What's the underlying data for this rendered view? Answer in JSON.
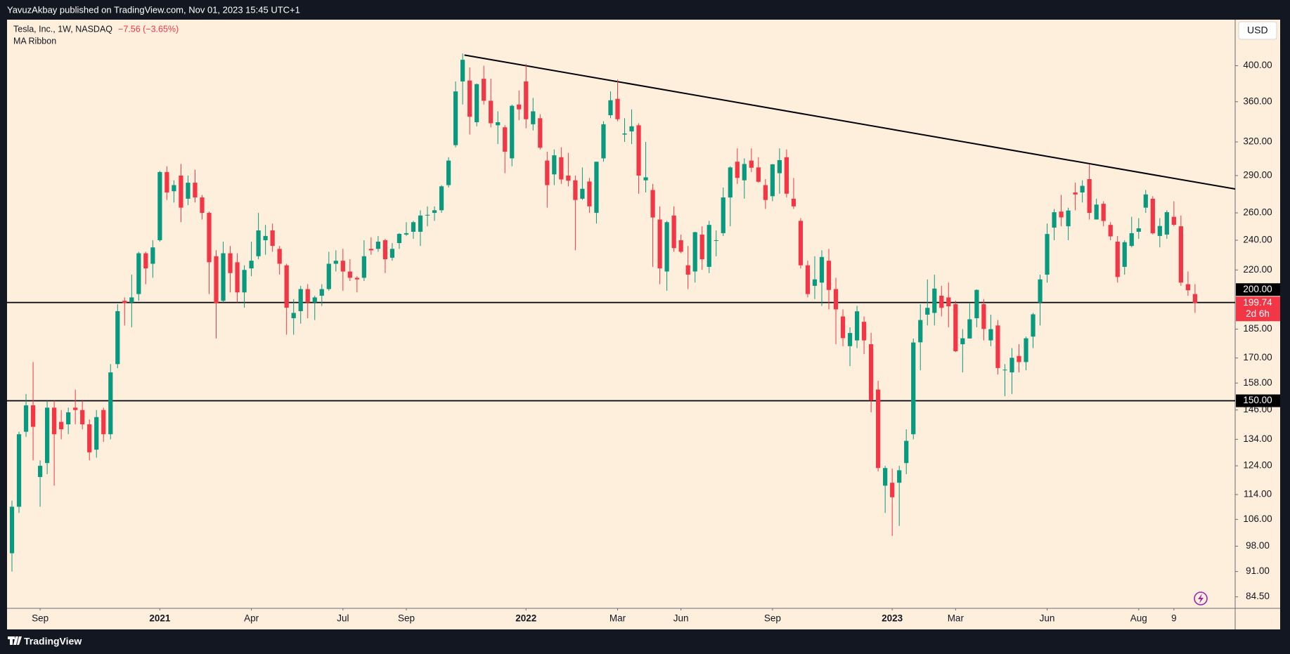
{
  "publisher": "YavuzAkbay published on TradingView.com, Nov 01, 2023 15:45 UTC+1",
  "footer": "TradingView",
  "currency": "USD",
  "chart_data": {
    "type": "candlestick",
    "title": "Tesla, Inc., 1W, NASDAQ",
    "change": {
      "value": -7.56,
      "percent": -3.65,
      "label": "−7.56 (−3.65%)"
    },
    "indicator": "MA Ribbon",
    "countdown": "2d 6h",
    "log_scale": true,
    "grid": false,
    "up_color": "#089981",
    "down_color": "#f23645",
    "ylim": [
      81.7,
      457.7
    ],
    "xlim": [
      -0.7,
      173.7
    ],
    "yticks": [
      {
        "value": 84.5,
        "label": "84.50"
      },
      {
        "value": 91,
        "label": "91.00"
      },
      {
        "value": 98,
        "label": "98.00"
      },
      {
        "value": 106,
        "label": "106.00"
      },
      {
        "value": 114,
        "label": "114.00"
      },
      {
        "value": 124,
        "label": "124.00"
      },
      {
        "value": 134,
        "label": "134.00"
      },
      {
        "value": 146,
        "label": "146.00"
      },
      {
        "value": 158,
        "label": "158.00"
      },
      {
        "value": 170,
        "label": "170.00"
      },
      {
        "value": 185,
        "label": "185.00"
      },
      {
        "value": 220,
        "label": "220.00"
      },
      {
        "value": 240,
        "label": "240.00"
      },
      {
        "value": 260,
        "label": "260.00"
      },
      {
        "value": 290,
        "label": "290.00"
      },
      {
        "value": 320,
        "label": "320.00"
      },
      {
        "value": 360,
        "label": "360.00"
      },
      {
        "value": 400,
        "label": "400.00"
      }
    ],
    "xticks": [
      {
        "value": 4,
        "label": "Sep"
      },
      {
        "value": 21,
        "label": "2021"
      },
      {
        "value": 34,
        "label": "Apr"
      },
      {
        "value": 47,
        "label": "Jul"
      },
      {
        "value": 56,
        "label": "Sep"
      },
      {
        "value": 73,
        "label": "2022"
      },
      {
        "value": 86,
        "label": "Mar"
      },
      {
        "value": 95,
        "label": "Jun"
      },
      {
        "value": 108,
        "label": "Sep"
      },
      {
        "value": 125,
        "label": "2023"
      },
      {
        "value": 134,
        "label": "Mar"
      },
      {
        "value": 147,
        "label": "Jun"
      },
      {
        "value": 160,
        "label": "Aug"
      },
      {
        "value": 165,
        "label": "9"
      }
    ],
    "hlines": [
      {
        "value": 200,
        "label": "200.00"
      },
      {
        "value": 150,
        "label": "150.00"
      }
    ],
    "trendline": {
      "x": [
        64.25,
        173.7
      ],
      "y": [
        412.7,
        278.8
      ]
    },
    "open": [
      96,
      110,
      137,
      148,
      120,
      125,
      147,
      141,
      140,
      147,
      146,
      140,
      130,
      146,
      136,
      167,
      201,
      200,
      205,
      231,
      224,
      240,
      293,
      277,
      290,
      271,
      284,
      272,
      260,
      229,
      201,
      231,
      225,
      206,
      221,
      229,
      240,
      247,
      234,
      223,
      191,
      195,
      208,
      200,
      204,
      208,
      224,
      226,
      219,
      215,
      215,
      234,
      234,
      240,
      228,
      238,
      244,
      246,
      246,
      258,
      260,
      262,
      282,
      317,
      382,
      383,
      339,
      385,
      361,
      336,
      334,
      305,
      357,
      382,
      337,
      343,
      303,
      291,
      306,
      290,
      286,
      271,
      285,
      260,
      305,
      346,
      363,
      327,
      330,
      336,
      286,
      278,
      255,
      219,
      258,
      240,
      223,
      219,
      244,
      222,
      240,
      245,
      272,
      302,
      286,
      303,
      297,
      282,
      273,
      292,
      306,
      271,
      254,
      223,
      210,
      212,
      226,
      208,
      192,
      176,
      179,
      189,
      177,
      155,
      117,
      118,
      118,
      125,
      136,
      178,
      193,
      194,
      204,
      203,
      199,
      177,
      180,
      191,
      199,
      179,
      187,
      164,
      163,
      171,
      168,
      181,
      200,
      217,
      249,
      261,
      250,
      276,
      276,
      287,
      255,
      267,
      251,
      239,
      222,
      236,
      246,
      264,
      271,
      243,
      244,
      257,
      250,
      211,
      205
    ],
    "high": [
      112,
      137,
      153,
      168,
      126,
      150,
      150,
      146,
      147,
      155,
      150,
      142,
      146,
      147,
      167,
      199,
      203,
      217,
      232,
      232,
      240,
      294,
      298,
      286,
      300,
      290,
      295,
      274,
      261,
      233,
      239,
      236,
      231,
      223,
      239,
      260,
      251,
      252,
      236,
      224,
      202,
      210,
      211,
      204,
      211,
      232,
      233,
      234,
      227,
      216,
      240,
      242,
      243,
      241,
      238,
      245,
      253,
      254,
      262,
      265,
      265,
      282,
      306,
      382,
      414.5,
      398,
      379.7,
      400,
      385,
      350,
      336,
      357,
      372,
      402,
      364,
      347,
      311,
      313,
      315,
      310,
      290,
      297,
      288,
      302,
      340,
      371,
      384,
      343,
      352,
      338,
      320,
      283,
      265,
      254,
      265,
      244,
      236,
      246,
      250,
      254,
      247,
      280,
      298,
      314,
      305,
      314,
      306,
      287,
      300,
      314,
      313,
      288,
      256,
      226,
      229,
      233,
      234,
      215,
      196,
      186,
      198,
      192,
      183,
      159,
      124,
      123,
      124,
      138,
      180,
      199,
      214,
      217,
      210,
      212,
      201,
      185,
      200,
      207.8,
      202,
      193,
      190,
      167,
      175,
      177,
      181,
      194,
      217,
      252,
      263,
      274,
      264,
      284,
      286,
      300,
      271,
      269,
      253,
      243,
      240,
      257,
      256,
      278,
      273,
      256,
      262,
      269,
      258,
      219,
      211
    ],
    "low": [
      91,
      108,
      135,
      126,
      110,
      121,
      117,
      134,
      136,
      140,
      138,
      126,
      127,
      133,
      134,
      165,
      187,
      186,
      201,
      211,
      215,
      239,
      270,
      268,
      253,
      266,
      268,
      255,
      205,
      180,
      200,
      206,
      200,
      197,
      216,
      227,
      230,
      232,
      217,
      182,
      182,
      188,
      191,
      190,
      198,
      207,
      219,
      207,
      213,
      206,
      213,
      230,
      232,
      218,
      226,
      234,
      243,
      241,
      236,
      250,
      254,
      260,
      280,
      315,
      357,
      327,
      335,
      357,
      334,
      318,
      292,
      298,
      341,
      333,
      331,
      313,
      264,
      282,
      283,
      281,
      233,
      270,
      260,
      252,
      302,
      343,
      340,
      320,
      318,
      275,
      276,
      222,
      211,
      207,
      232,
      231,
      208,
      212,
      220,
      218,
      229,
      243,
      250,
      283,
      271,
      293,
      284,
      263,
      269,
      275,
      272,
      263,
      221,
      203,
      202,
      198,
      196,
      177,
      176,
      166,
      175,
      172,
      145,
      122,
      108,
      101,
      104,
      121,
      134,
      164,
      187,
      187,
      192,
      186,
      173,
      163,
      180,
      186,
      179,
      176,
      162,
      152,
      153,
      163,
      164,
      175,
      187,
      212,
      240,
      250,
      240,
      262,
      268,
      255,
      255,
      250,
      240,
      212,
      217,
      235,
      241,
      260,
      244,
      235,
      241,
      250,
      210,
      204,
      194
    ],
    "close": [
      110,
      136,
      148,
      139,
      124,
      147,
      136,
      138,
      145,
      146,
      140,
      129,
      143,
      136,
      163,
      195,
      199.7,
      203,
      231,
      221,
      235,
      293,
      276,
      282,
      264,
      284,
      272,
      260,
      225,
      199.5,
      231,
      218,
      206,
      220,
      226,
      247,
      243,
      236,
      224,
      197,
      194,
      208,
      200,
      203,
      208,
      224,
      226,
      219,
      215,
      214,
      229,
      233,
      239,
      227,
      234,
      244.5,
      245,
      253,
      258,
      258.5,
      262,
      281,
      303,
      371,
      407,
      344.5,
      379,
      361,
      338,
      339,
      311,
      355.7,
      352,
      342,
      350,
      314.6,
      282,
      307.7,
      286.7,
      285.7,
      270,
      279,
      265,
      302,
      337,
      361.5,
      342,
      328,
      335,
      290,
      288.5,
      256.5,
      221,
      253,
      234.5,
      232,
      217,
      245.7,
      227,
      251,
      240,
      272,
      297,
      288,
      300,
      296.7,
      284.8,
      270,
      299.7,
      303.4,
      275,
      265,
      223,
      205,
      214,
      228.5,
      207.5,
      196,
      180.2,
      182.9,
      194.9,
      179,
      150.2,
      123.2,
      123.2,
      113.1,
      122.4,
      133.4,
      177.9,
      190,
      196.9,
      208.3,
      196.9,
      197.8,
      173.4,
      180.1,
      190.4,
      207.5,
      185.1,
      185,
      165.1,
      164.3,
      170.1,
      168,
      180.1,
      193.2,
      214,
      244.4,
      260.5,
      256.6,
      261.8,
      274.4,
      281.4,
      260,
      266.4,
      253.9,
      242.7,
      215.5,
      238.6,
      245,
      248.5,
      274.4,
      244.9,
      250.2,
      260.5,
      251.1,
      212,
      207.3,
      199.74
    ]
  }
}
